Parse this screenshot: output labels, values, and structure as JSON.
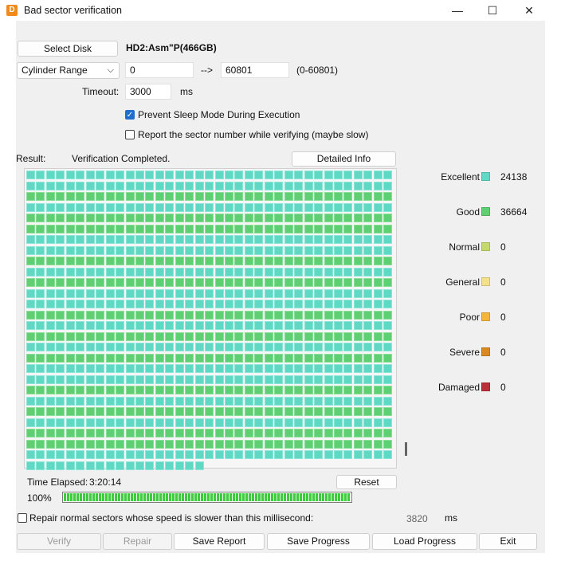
{
  "window": {
    "title": "Bad sector verification",
    "app_icon_glyph": "D",
    "minimize_glyph": "—",
    "maximize_glyph": "☐",
    "close_glyph": "✕"
  },
  "disk": {
    "select_label": "Select Disk",
    "name": "HD2:Asm\"P(466GB)"
  },
  "range": {
    "mode": "Cylinder Range",
    "dropdown_glyph": "⌵",
    "from": "0",
    "arrow": "-->",
    "to": "60801",
    "limits": "(0-60801)"
  },
  "timeout": {
    "label": "Timeout:",
    "value": "3000",
    "unit": "ms"
  },
  "options": {
    "prevent_sleep": {
      "label": "Prevent Sleep Mode During Execution",
      "checked": true
    },
    "report_sector": {
      "label": "Report the sector number while verifying (maybe slow)",
      "checked": false
    }
  },
  "result": {
    "label": "Result:",
    "status": "Verification Completed.",
    "detail_button": "Detailed Info"
  },
  "legend": [
    {
      "name": "Excellent",
      "color": "#5fd9c4",
      "count": "24138"
    },
    {
      "name": "Good",
      "color": "#5fcf73",
      "count": "36664"
    },
    {
      "name": "Normal",
      "color": "#c3d96a",
      "count": "0"
    },
    {
      "name": "General",
      "color": "#f3e08c",
      "count": "0"
    },
    {
      "name": "Poor",
      "color": "#f4b53a",
      "count": "0"
    },
    {
      "name": "Severe",
      "color": "#d88a20",
      "count": "0"
    },
    {
      "name": "Damaged",
      "color": "#b9303a",
      "count": "0"
    }
  ],
  "block_map": {
    "columns": 37,
    "full_rows": 27,
    "last_row_blocks": 18,
    "row_status": [
      "excellent",
      "excellent",
      "good",
      "excellent",
      "good",
      "good",
      "excellent",
      "excellent",
      "good",
      "excellent",
      "good",
      "excellent",
      "excellent",
      "good",
      "excellent",
      "good",
      "excellent",
      "good",
      "excellent",
      "excellent",
      "good",
      "excellent",
      "good",
      "excellent",
      "good",
      "good",
      "excellent",
      "excellent"
    ]
  },
  "elapsed": {
    "label": "Time Elapsed:",
    "value": "3:20:14",
    "reset_label": "Reset"
  },
  "progress": {
    "percent_text": "100%",
    "value": 1.0
  },
  "repair": {
    "label": "Repair normal sectors whose speed is slower than this millisecond:",
    "checked": false,
    "value": "3820",
    "unit": "ms"
  },
  "footer": {
    "verify": "Verify",
    "repair": "Repair",
    "save_report": "Save Report",
    "save_progress": "Save Progress",
    "load_progress": "Load Progress",
    "exit": "Exit"
  }
}
